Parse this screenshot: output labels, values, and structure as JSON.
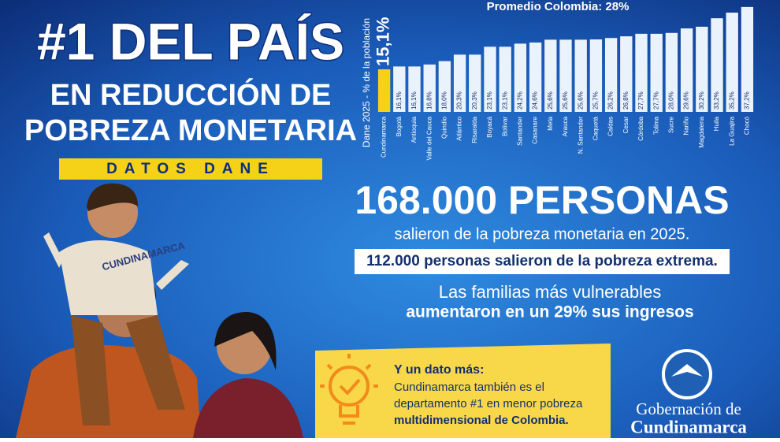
{
  "chart_data": {
    "type": "bar",
    "title": "Promedio Colombia: 28%",
    "y_label": "Dane 2025 - % de la población",
    "categories": [
      "Cundinamarca",
      "Bogotá",
      "Antioquia",
      "Valle del Cauca",
      "Quindío",
      "Atlántico",
      "Risaralda",
      "Boyacá",
      "Bolívar",
      "Santander",
      "Casanare",
      "Meta",
      "Arauca",
      "N. Santander",
      "Caquetá",
      "Caldas",
      "Cesar",
      "Córdoba",
      "Tolima",
      "Sucre",
      "Nariño",
      "Magdalena",
      "Huila",
      "La Guajira",
      "Chocó"
    ],
    "values": [
      15.1,
      16.1,
      16.1,
      16.8,
      18.0,
      20.3,
      20.3,
      23.1,
      23.1,
      24.2,
      24.6,
      25.6,
      25.6,
      25.6,
      25.7,
      26.2,
      26.8,
      27.7,
      27.7,
      28.0,
      29.6,
      30.2,
      33.2,
      35.2,
      37.2
    ],
    "value_labels": [
      "15,1%",
      "16,1%",
      "16,1%",
      "16,8%",
      "18,0%",
      "20,3%",
      "20,3%",
      "23,1%",
      "23,1%",
      "24,2%",
      "24,6%",
      "25,6%",
      "25,6%",
      "25,6%",
      "25,7%",
      "26,2%",
      "26,8%",
      "27,7%",
      "27,7%",
      "28,0%",
      "29,6%",
      "30,2%",
      "33,2%",
      "35,2%",
      "37,2%"
    ],
    "colors": [
      "#f5d117",
      "#eaf2fb",
      "#eaf2fb",
      "#eaf2fb",
      "#eaf2fb",
      "#eaf2fb",
      "#eaf2fb",
      "#eaf2fb",
      "#eaf2fb",
      "#eaf2fb",
      "#eaf2fb",
      "#eaf2fb",
      "#eaf2fb",
      "#eaf2fb",
      "#eaf2fb",
      "#eaf2fb",
      "#eaf2fb",
      "#eaf2fb",
      "#eaf2fb",
      "#eaf2fb",
      "#eaf2fb",
      "#eaf2fb",
      "#eaf2fb",
      "#eaf2fb",
      "#eaf2fb"
    ],
    "ylim": [
      0,
      38
    ]
  },
  "poster": {
    "headline": "#1 DEL PAÍS",
    "line1": "EN REDUCCIÓN DE",
    "line2": "POBREZA MONETARIA",
    "badge": "DATOS DANE",
    "big": "168.000 PERSONAS",
    "big_sub": "salieron de la pobreza monetaria en 2025.",
    "extreme": "112.000 personas salieron de la pobreza extrema.",
    "families1": "Las familias más vulnerables",
    "families2": "aumentaron en un 29% sus ingresos",
    "box_title": "Y un dato más:",
    "box_text": [
      "Cundinamarca también es el",
      "departamento #1 en menor pobreza",
      "multidimensional de Colombia."
    ],
    "shirt": "CUNDINAMARCA",
    "logo1": "Gobernación de",
    "logo2": "Cundinamarca"
  }
}
